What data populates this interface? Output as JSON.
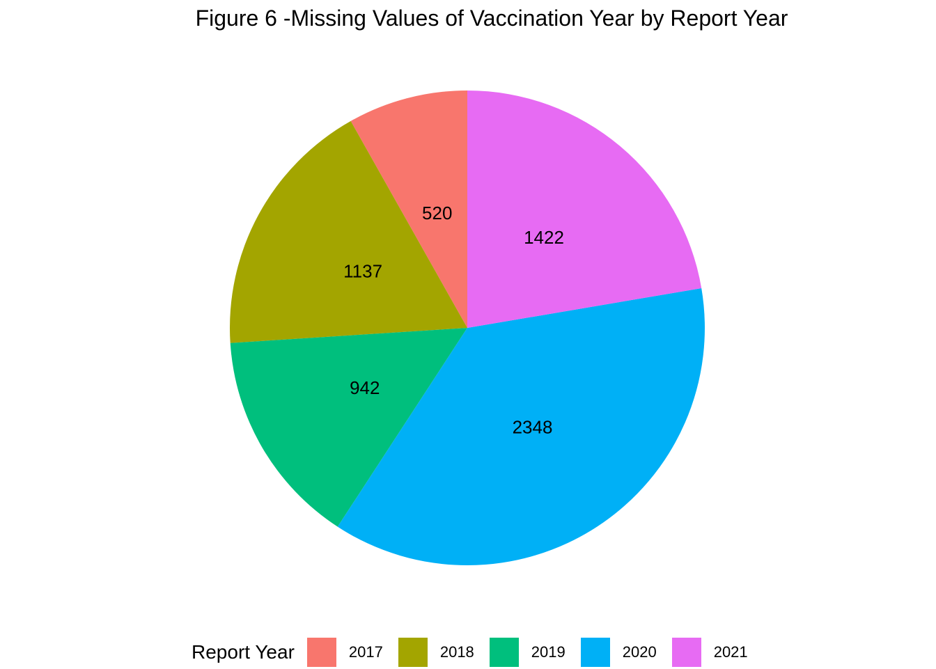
{
  "chart_data": {
    "type": "pie",
    "title": "Figure 6 -Missing Values of Vaccination Year by Report Year",
    "legend_title": "Report Year",
    "legend_position": "bottom",
    "categories": [
      "2017",
      "2018",
      "2019",
      "2020",
      "2021"
    ],
    "values": [
      520,
      1137,
      942,
      2348,
      1422
    ],
    "colors": [
      "#F8766D",
      "#A3A500",
      "#00BF7D",
      "#00B0F6",
      "#E76BF3"
    ],
    "start_angle_direction": "counterclockwise from 12 o'clock",
    "grid": false
  }
}
